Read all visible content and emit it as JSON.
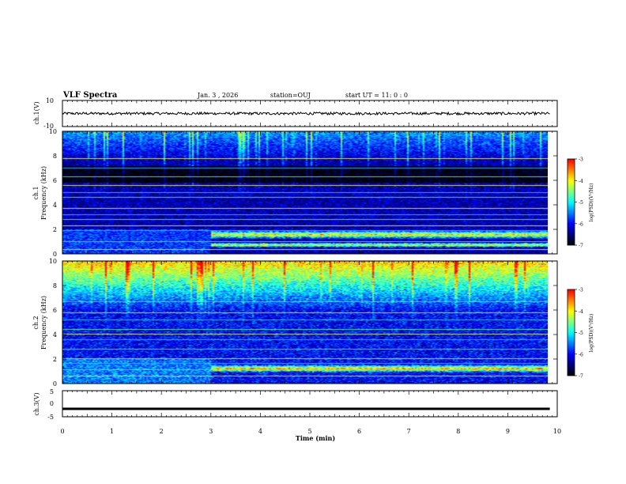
{
  "header": {
    "title": "VLF Spectra",
    "date": "Jan. 3 , 2026",
    "station": "station=OUJ",
    "start": "start UT =  11: 0 : 0"
  },
  "colors": {
    "spectrogram_scale": [
      "#000080",
      "#0000ff",
      "#0080ff",
      "#00ffff",
      "#80ff80",
      "#ffff00",
      "#ff8000",
      "#ff0000",
      "#ffffff"
    ],
    "background": "#000000",
    "trace": "#000000"
  },
  "chart_data": [
    {
      "type": "line",
      "name": "ch1-waveform",
      "ylabel": "ch.1(V)",
      "ylim": [
        -10,
        10
      ],
      "yticks": [
        "10",
        "-10"
      ],
      "xlim": [
        0,
        9.85
      ],
      "mean": 0,
      "noise_amplitude": 1
    },
    {
      "type": "heatmap",
      "name": "ch1-spectrogram",
      "ylabel": "ch.1\nFrequency (kHz)",
      "ylabel_lines": [
        "ch.1",
        "Frequency (kHz)"
      ],
      "ylim": [
        0,
        10
      ],
      "yticks": [
        "0",
        "2",
        "4",
        "6",
        "8",
        "10"
      ],
      "xlim": [
        0,
        9.85
      ],
      "colorbar": {
        "label": "log(PSD)(V²/Hz)",
        "range": [
          -7,
          -3
        ],
        "ticks": [
          "-3",
          "-4",
          "-5",
          "-6",
          "-7"
        ]
      },
      "emission_bands_khz": [
        [
          0.5,
          0.9
        ],
        [
          1.2,
          1.9
        ]
      ],
      "band_onset_min": 3.0,
      "line_frequencies_khz": [
        0.3,
        1.0,
        1.9,
        2.3,
        2.8,
        3.2,
        3.7,
        4.6,
        5.0,
        5.6,
        6.3,
        7.0,
        7.8
      ],
      "background_level": -6.3
    },
    {
      "type": "heatmap",
      "name": "ch2-spectrogram",
      "ylabel": "ch.2\nFrequency (kHz)",
      "ylabel_lines": [
        "ch.2",
        "Frequency (kHz)"
      ],
      "ylim": [
        0,
        10
      ],
      "yticks": [
        "0",
        "2",
        "4",
        "6",
        "8",
        "10"
      ],
      "xlim": [
        0,
        9.85
      ],
      "colorbar": {
        "label": "log(PSD)(V²/Hz)",
        "range": [
          -7,
          -3
        ],
        "ticks": [
          "-3",
          "-4",
          "-5",
          "-6",
          "-7"
        ]
      },
      "emission_bands_khz": [
        [
          0.9,
          1.5
        ]
      ],
      "band_onset_min": 3.0,
      "line_frequencies_khz": [
        0.6,
        1.1,
        1.6,
        2.0,
        2.8,
        3.6,
        4.0,
        4.4,
        5.2,
        5.8,
        6.7,
        7.5
      ],
      "background_level": -6.0
    },
    {
      "type": "line",
      "name": "ch3-waveform",
      "ylabel": "ch.3(V)",
      "ylim": [
        -5,
        5
      ],
      "yticks": [
        "5",
        "0",
        "-5"
      ],
      "xlim": [
        0,
        9.85
      ],
      "mean": -1.8,
      "noise_amplitude": 0.15
    }
  ],
  "xaxis": {
    "label": "Time (min)",
    "range": [
      0,
      10
    ],
    "ticks": [
      "0",
      "1",
      "2",
      "3",
      "4",
      "5",
      "6",
      "7",
      "8",
      "9",
      "10"
    ]
  }
}
